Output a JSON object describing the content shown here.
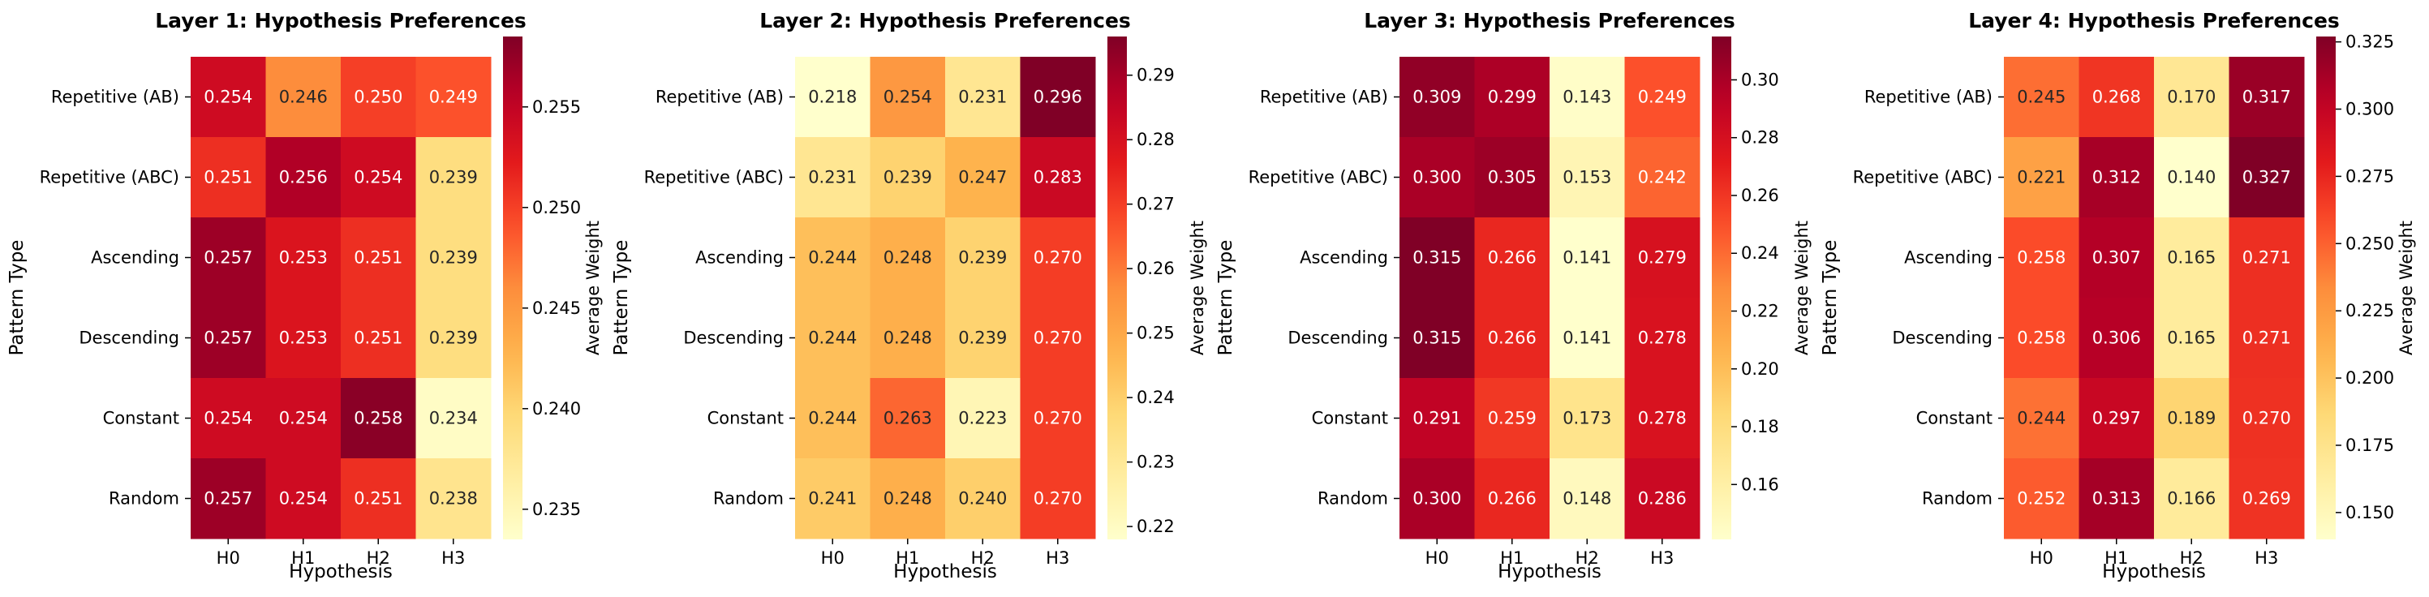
{
  "chart_data": [
    {
      "type": "heatmap",
      "title": "Layer 1: Hypothesis Preferences",
      "xlabel": "Hypothesis",
      "ylabel": "Pattern Type",
      "x_categories": [
        "H0",
        "H1",
        "H2",
        "H3"
      ],
      "y_categories": [
        "Repetitive (AB)",
        "Repetitive (ABC)",
        "Ascending",
        "Descending",
        "Constant",
        "Random"
      ],
      "values": [
        [
          0.254,
          0.246,
          0.25,
          0.249
        ],
        [
          0.251,
          0.256,
          0.254,
          0.239
        ],
        [
          0.257,
          0.253,
          0.251,
          0.239
        ],
        [
          0.257,
          0.253,
          0.251,
          0.239
        ],
        [
          0.254,
          0.254,
          0.258,
          0.234
        ],
        [
          0.257,
          0.254,
          0.251,
          0.238
        ]
      ],
      "value_labels": [
        [
          "0.254",
          "0.246",
          "0.250",
          "0.249"
        ],
        [
          "0.251",
          "0.256",
          "0.254",
          "0.239"
        ],
        [
          "0.257",
          "0.253",
          "0.251",
          "0.239"
        ],
        [
          "0.257",
          "0.253",
          "0.251",
          "0.239"
        ],
        [
          "0.254",
          "0.254",
          "0.258",
          "0.234"
        ],
        [
          "0.257",
          "0.254",
          "0.251",
          "0.238"
        ]
      ],
      "colorbar": {
        "label": "Average Weight",
        "range": [
          0.2335,
          0.2585
        ],
        "ticks": [
          0.235,
          0.24,
          0.245,
          0.25,
          0.255
        ],
        "tick_labels": [
          "0.235",
          "0.240",
          "0.245",
          "0.250",
          "0.255"
        ]
      },
      "colormap": "YlOrRd"
    },
    {
      "type": "heatmap",
      "title": "Layer 2: Hypothesis Preferences",
      "xlabel": "Hypothesis",
      "ylabel": "Pattern Type",
      "x_categories": [
        "H0",
        "H1",
        "H2",
        "H3"
      ],
      "y_categories": [
        "Repetitive (AB)",
        "Repetitive (ABC)",
        "Ascending",
        "Descending",
        "Constant",
        "Random"
      ],
      "values": [
        [
          0.218,
          0.254,
          0.231,
          0.296
        ],
        [
          0.231,
          0.239,
          0.247,
          0.283
        ],
        [
          0.244,
          0.248,
          0.239,
          0.27
        ],
        [
          0.244,
          0.248,
          0.239,
          0.27
        ],
        [
          0.244,
          0.263,
          0.223,
          0.27
        ],
        [
          0.241,
          0.248,
          0.24,
          0.27
        ]
      ],
      "value_labels": [
        [
          "0.218",
          "0.254",
          "0.231",
          "0.296"
        ],
        [
          "0.231",
          "0.239",
          "0.247",
          "0.283"
        ],
        [
          "0.244",
          "0.248",
          "0.239",
          "0.270"
        ],
        [
          "0.244",
          "0.248",
          "0.239",
          "0.270"
        ],
        [
          "0.244",
          "0.263",
          "0.223",
          "0.270"
        ],
        [
          "0.241",
          "0.248",
          "0.240",
          "0.270"
        ]
      ],
      "colorbar": {
        "label": "Average Weight",
        "range": [
          0.218,
          0.296
        ],
        "ticks": [
          0.22,
          0.23,
          0.24,
          0.25,
          0.26,
          0.27,
          0.28,
          0.29
        ],
        "tick_labels": [
          "0.22",
          "0.23",
          "0.24",
          "0.25",
          "0.26",
          "0.27",
          "0.28",
          "0.29"
        ]
      },
      "colormap": "YlOrRd"
    },
    {
      "type": "heatmap",
      "title": "Layer 3: Hypothesis Preferences",
      "xlabel": "Hypothesis",
      "ylabel": "Pattern Type",
      "x_categories": [
        "H0",
        "H1",
        "H2",
        "H3"
      ],
      "y_categories": [
        "Repetitive (AB)",
        "Repetitive (ABC)",
        "Ascending",
        "Descending",
        "Constant",
        "Random"
      ],
      "values": [
        [
          0.309,
          0.299,
          0.143,
          0.249
        ],
        [
          0.3,
          0.305,
          0.153,
          0.242
        ],
        [
          0.315,
          0.266,
          0.141,
          0.279
        ],
        [
          0.315,
          0.266,
          0.141,
          0.278
        ],
        [
          0.291,
          0.259,
          0.173,
          0.278
        ],
        [
          0.3,
          0.266,
          0.148,
          0.286
        ]
      ],
      "value_labels": [
        [
          "0.309",
          "0.299",
          "0.143",
          "0.249"
        ],
        [
          "0.300",
          "0.305",
          "0.153",
          "0.242"
        ],
        [
          "0.315",
          "0.266",
          "0.141",
          "0.279"
        ],
        [
          "0.315",
          "0.266",
          "0.141",
          "0.278"
        ],
        [
          "0.291",
          "0.259",
          "0.173",
          "0.278"
        ],
        [
          "0.300",
          "0.266",
          "0.148",
          "0.286"
        ]
      ],
      "colorbar": {
        "label": "Average Weight",
        "range": [
          0.141,
          0.315
        ],
        "ticks": [
          0.16,
          0.18,
          0.2,
          0.22,
          0.24,
          0.26,
          0.28,
          0.3
        ],
        "tick_labels": [
          "0.16",
          "0.18",
          "0.20",
          "0.22",
          "0.24",
          "0.26",
          "0.28",
          "0.30"
        ]
      },
      "colormap": "YlOrRd"
    },
    {
      "type": "heatmap",
      "title": "Layer 4: Hypothesis Preferences",
      "xlabel": "Hypothesis",
      "ylabel": "Pattern Type",
      "x_categories": [
        "H0",
        "H1",
        "H2",
        "H3"
      ],
      "y_categories": [
        "Repetitive (AB)",
        "Repetitive (ABC)",
        "Ascending",
        "Descending",
        "Constant",
        "Random"
      ],
      "values": [
        [
          0.245,
          0.268,
          0.17,
          0.317
        ],
        [
          0.221,
          0.312,
          0.14,
          0.327
        ],
        [
          0.258,
          0.307,
          0.165,
          0.271
        ],
        [
          0.258,
          0.306,
          0.165,
          0.271
        ],
        [
          0.244,
          0.297,
          0.189,
          0.27
        ],
        [
          0.252,
          0.313,
          0.166,
          0.269
        ]
      ],
      "value_labels": [
        [
          "0.245",
          "0.268",
          "0.170",
          "0.317"
        ],
        [
          "0.221",
          "0.312",
          "0.140",
          "0.327"
        ],
        [
          "0.258",
          "0.307",
          "0.165",
          "0.271"
        ],
        [
          "0.258",
          "0.306",
          "0.165",
          "0.271"
        ],
        [
          "0.244",
          "0.297",
          "0.189",
          "0.270"
        ],
        [
          "0.252",
          "0.313",
          "0.166",
          "0.269"
        ]
      ],
      "colorbar": {
        "label": "Average Weight",
        "range": [
          0.14,
          0.327
        ],
        "ticks": [
          0.15,
          0.175,
          0.2,
          0.225,
          0.25,
          0.275,
          0.3,
          0.325
        ],
        "tick_labels": [
          "0.150",
          "0.175",
          "0.200",
          "0.225",
          "0.250",
          "0.275",
          "0.300",
          "0.325"
        ]
      },
      "colormap": "YlOrRd"
    }
  ],
  "colormap_stops": [
    "#ffffcc",
    "#ffeda0",
    "#fed976",
    "#feb24c",
    "#fd8d3c",
    "#fc4e2a",
    "#e31a1c",
    "#bd0026",
    "#800026"
  ]
}
